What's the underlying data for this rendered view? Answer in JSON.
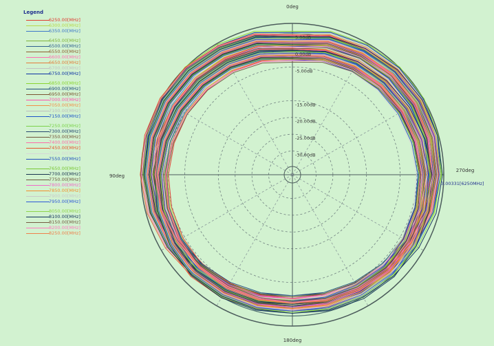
{
  "legend": {
    "title": "Legend",
    "groups": [
      [
        {
          "label": "6250.00[MHz]",
          "color": "#e03a2f"
        },
        {
          "label": "6300.00[MHz]",
          "color": "#b7d84a"
        },
        {
          "label": "6350.00[MHz]",
          "color": "#3d76c9"
        }
      ],
      [
        {
          "label": "6450.00[MHz]",
          "color": "#7fb33a"
        },
        {
          "label": "6500.00[MHz]",
          "color": "#2f5f8f"
        },
        {
          "label": "6550.00[MHz]",
          "color": "#8d5c2f"
        },
        {
          "label": "6600.00[MHz]",
          "color": "#ff6fb3"
        },
        {
          "label": "6650.00[MHz]",
          "color": "#e37b3a"
        },
        {
          "label": "6700.00[MHz]",
          "color": "#c2c2c2"
        },
        {
          "label": "6750.00[MHz]",
          "color": "#0a2fa3"
        }
      ],
      [
        {
          "label": "6850.00[MHz]",
          "color": "#8ad42f"
        },
        {
          "label": "6900.00[MHz]",
          "color": "#1d4a7a"
        },
        {
          "label": "6950.00[MHz]",
          "color": "#7a5530"
        },
        {
          "label": "7000.00[MHz]",
          "color": "#ff4fb0"
        },
        {
          "label": "7050.00[MHz]",
          "color": "#f18f47"
        },
        {
          "label": "7100.00[MHz]",
          "color": "#bdbdbd"
        },
        {
          "label": "7150.00[MHz]",
          "color": "#1a53c8"
        }
      ],
      [
        {
          "label": "7250.00[MHz]",
          "color": "#7ad24a"
        },
        {
          "label": "7300.00[MHz]",
          "color": "#23456e"
        },
        {
          "label": "7350.00[MHz]",
          "color": "#73543a"
        },
        {
          "label": "7400.00[MHz]",
          "color": "#ff6aa8"
        },
        {
          "label": "7450.00[MHz]",
          "color": "#e6562f"
        },
        {
          "label": "7500.00[MHz]",
          "color": "#d6d6d6"
        },
        {
          "label": "7550.00[MHz]",
          "color": "#214fbf"
        }
      ],
      [
        {
          "label": "7650.00[MHz]",
          "color": "#79c734"
        },
        {
          "label": "7700.00[MHz]",
          "color": "#16324e"
        },
        {
          "label": "7750.00[MHz]",
          "color": "#6e5b3e"
        },
        {
          "label": "7800.00[MHz]",
          "color": "#ef6bc8"
        },
        {
          "label": "7850.00[MHz]",
          "color": "#f28e2b"
        },
        {
          "label": "7900.00[MHz]",
          "color": "#c9c9c9"
        },
        {
          "label": "7950.00[MHz]",
          "color": "#2c56d8"
        }
      ],
      [
        {
          "label": "8050.00[MHz]",
          "color": "#8fd44a"
        },
        {
          "label": "8100.00[MHz]",
          "color": "#0f2f5a"
        },
        {
          "label": "8150.00[MHz]",
          "color": "#745b42"
        },
        {
          "label": "8200.00[MHz]",
          "color": "#ff79c0"
        },
        {
          "label": "8250.00[MHz]",
          "color": "#ef7f4a"
        }
      ]
    ]
  },
  "chart_data": {
    "type": "polar",
    "angle_labels": {
      "top": "0deg",
      "left": "90deg",
      "bottom": "180deg",
      "right": "270deg"
    },
    "radial_ticks": [
      {
        "value": 5,
        "label": "5.00dB"
      },
      {
        "value": 0,
        "label": "0.00dB"
      },
      {
        "value": -5,
        "label": "-5.00dB"
      },
      {
        "value": -15,
        "label": "-15.00dB"
      },
      {
        "value": -20,
        "label": "-20.00dB"
      },
      {
        "value": -25,
        "label": "-25.00dB"
      },
      {
        "value": -30,
        "label": "-30.00dB"
      }
    ],
    "radial_range": [
      -35,
      8
    ],
    "marker_label": "3.00331[6250MHz]",
    "angle_step_deg": 15,
    "series_pattern_db": [
      3.0,
      4.5,
      5.2,
      5.8,
      6.0,
      5.9,
      5.6,
      5.0,
      4.0,
      3.0,
      2.4,
      1.9,
      1.6,
      2.2,
      2.9,
      3.3,
      3.1,
      2.8,
      2.5,
      2.0,
      1.6,
      1.2,
      0.7,
      0.0,
      -1.0,
      0.0,
      0.7,
      1.2,
      1.6,
      2.0,
      2.5,
      2.8,
      3.1,
      3.3,
      2.9,
      2.2,
      1.6,
      1.9,
      2.4,
      3.0,
      4.0,
      5.0,
      5.6,
      5.9,
      6.0,
      5.8,
      5.2,
      4.5,
      3.0
    ]
  }
}
